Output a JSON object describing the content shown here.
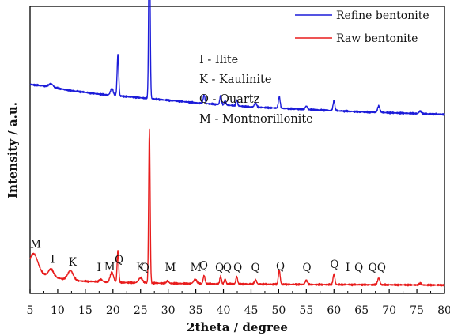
{
  "chart_data": {
    "type": "line",
    "xlabel": "2theta / degree",
    "ylabel": "Intensity / a.u.",
    "xlim": [
      5,
      80
    ],
    "x_ticks": [
      "5",
      "10",
      "15",
      "20",
      "25",
      "30",
      "35",
      "40",
      "45",
      "50",
      "55",
      "60",
      "65",
      "70",
      "75",
      "80"
    ],
    "y_ticks_shown": false,
    "legend_position": "top-right",
    "series": [
      {
        "name": "Refine bentonite",
        "color": "#1c1cd9",
        "baseline": [
          [
            5,
            62
          ],
          [
            8,
            60
          ],
          [
            12,
            55
          ],
          [
            18,
            50
          ],
          [
            25,
            46
          ],
          [
            35,
            40
          ],
          [
            45,
            35
          ],
          [
            55,
            32
          ],
          [
            65,
            29
          ],
          [
            75,
            27
          ],
          [
            80,
            26
          ]
        ],
        "peaks": [
          [
            8.8,
            4,
            0.35
          ],
          [
            19.8,
            8,
            0.25
          ],
          [
            20.9,
            50,
            0.14
          ],
          [
            26.6,
            205,
            0.13
          ],
          [
            36.5,
            10,
            0.16
          ],
          [
            39.5,
            11,
            0.15
          ],
          [
            40.3,
            5,
            0.15
          ],
          [
            42.4,
            7,
            0.15
          ],
          [
            45.8,
            5,
            0.2
          ],
          [
            50.1,
            14,
            0.16
          ],
          [
            55.0,
            4,
            0.2
          ],
          [
            60.0,
            12,
            0.16
          ],
          [
            68.1,
            8,
            0.2
          ],
          [
            75.6,
            3,
            0.2
          ]
        ]
      },
      {
        "name": "Raw bentonite",
        "color": "#e81c1c",
        "baseline": [
          [
            5,
            20
          ],
          [
            8,
            12
          ],
          [
            12,
            6
          ],
          [
            18,
            4
          ],
          [
            25,
            3
          ],
          [
            35,
            2
          ],
          [
            45,
            1.5
          ],
          [
            55,
            1
          ],
          [
            65,
            0.8
          ],
          [
            75,
            0.5
          ],
          [
            80,
            0.3
          ]
        ],
        "peaks": [
          [
            5.7,
            20,
            0.7
          ],
          [
            8.8,
            9,
            0.45
          ],
          [
            12.3,
            12,
            0.5
          ],
          [
            17.8,
            3,
            0.3
          ],
          [
            19.8,
            12,
            0.3
          ],
          [
            20.9,
            38,
            0.14
          ],
          [
            25.0,
            6,
            0.35
          ],
          [
            26.6,
            185,
            0.13
          ],
          [
            29.9,
            3,
            0.2
          ],
          [
            34.9,
            5,
            0.3
          ],
          [
            36.5,
            10,
            0.16
          ],
          [
            39.5,
            9,
            0.15
          ],
          [
            40.3,
            6,
            0.15
          ],
          [
            42.4,
            9,
            0.15
          ],
          [
            45.8,
            5,
            0.2
          ],
          [
            50.1,
            17,
            0.16
          ],
          [
            55.0,
            5,
            0.2
          ],
          [
            60.0,
            13,
            0.16
          ],
          [
            68.1,
            8,
            0.2
          ],
          [
            75.6,
            2,
            0.2
          ]
        ]
      }
    ],
    "annotations": [
      {
        "text": "M",
        "x": 6.0
      },
      {
        "text": "I",
        "x": 9.1
      },
      {
        "text": "K",
        "x": 12.7
      },
      {
        "text": "I",
        "x": 17.5
      },
      {
        "text": "M",
        "x": 19.4
      },
      {
        "text": "Q",
        "x": 21.1
      },
      {
        "text": "K",
        "x": 24.9
      },
      {
        "text": "Q",
        "x": 25.8
      },
      {
        "text": "M",
        "x": 30.4
      },
      {
        "text": "M",
        "x": 35.0
      },
      {
        "text": "Q",
        "x": 36.4
      },
      {
        "text": "Q",
        "x": 39.3
      },
      {
        "text": "Q",
        "x": 40.7
      },
      {
        "text": "Q",
        "x": 42.6
      },
      {
        "text": "Q",
        "x": 45.8
      },
      {
        "text": "Q",
        "x": 50.3
      },
      {
        "text": "Q",
        "x": 55.1
      },
      {
        "text": "Q",
        "x": 60.1
      },
      {
        "text": "I",
        "x": 62.5
      },
      {
        "text": "Q",
        "x": 64.5
      },
      {
        "text": "Q",
        "x": 67.0
      },
      {
        "text": "Q",
        "x": 68.6
      }
    ],
    "phase_key": [
      "I - Ilite",
      "K - Kaulinite",
      "Q - Quartz",
      "M - Montnorillonite"
    ]
  }
}
